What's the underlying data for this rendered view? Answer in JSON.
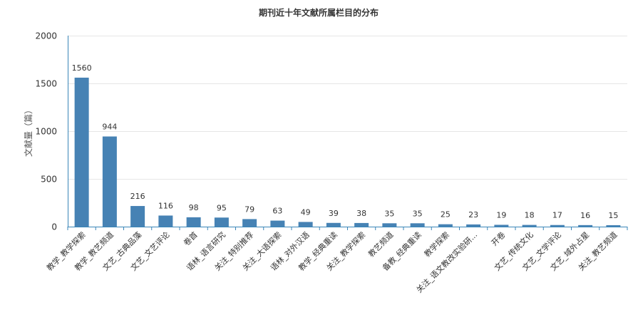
{
  "chart_data": {
    "type": "bar",
    "title": "期刊近十年文献所属栏目的分布",
    "ylabel": "文献量（篇）",
    "ylim": [
      0,
      2000
    ],
    "yticks": [
      0,
      500,
      1000,
      1500,
      2000
    ],
    "grid": true,
    "bar_color": "#4682b4",
    "categories": [
      "教学_教学探索",
      "教学_教艺频道",
      "文艺_古典品藻",
      "文艺_文艺评论",
      "卷首",
      "语林_语言研究",
      "关注_特别推荐",
      "关注_大语探索",
      "语林_对外汉语",
      "教学_经典重读",
      "关注_教学探索",
      "教艺频道",
      "备教_经典重读",
      "教学探索",
      "关注_语文教改实验研...",
      "开卷",
      "文艺_传统文化",
      "文艺_文学评论",
      "文艺_域外占星",
      "关注_教艺频道"
    ],
    "values": [
      1560,
      944,
      216,
      116,
      98,
      95,
      79,
      63,
      49,
      39,
      38,
      35,
      35,
      25,
      23,
      19,
      18,
      17,
      16,
      15
    ]
  }
}
